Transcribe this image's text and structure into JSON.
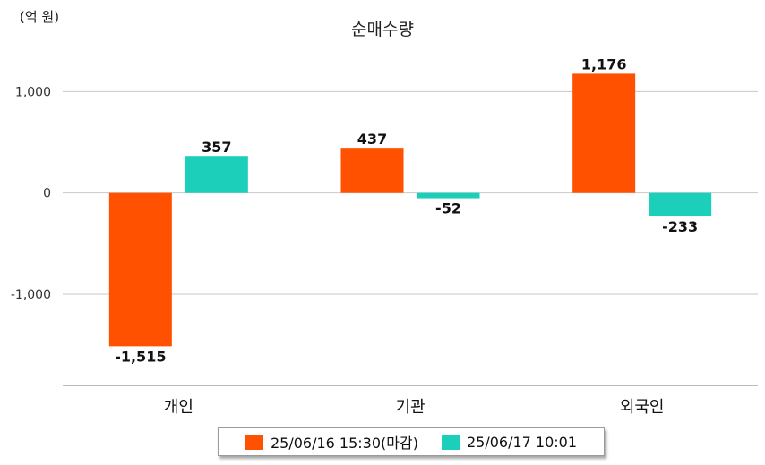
{
  "chart_data": {
    "type": "bar",
    "title": "순매수량",
    "unit_label": "(억 원)",
    "categories": [
      "개인",
      "기관",
      "외국인"
    ],
    "series": [
      {
        "name": "25/06/16 15:30(마감)",
        "color": "#ff5100",
        "values": [
          -1515,
          437,
          1176
        ],
        "labels": [
          "-1,515",
          "437",
          "1,176"
        ]
      },
      {
        "name": "25/06/17 10:01",
        "color": "#1ccfbb",
        "values": [
          357,
          -52,
          -233
        ],
        "labels": [
          "357",
          "-52",
          "-233"
        ]
      }
    ],
    "yticks": [
      1000,
      0,
      -1000
    ],
    "ytick_labels": [
      "1,000",
      "0",
      "-1,000"
    ],
    "ylim": [
      -1900,
      1400
    ],
    "grid": true,
    "legend_position": "bottom"
  }
}
